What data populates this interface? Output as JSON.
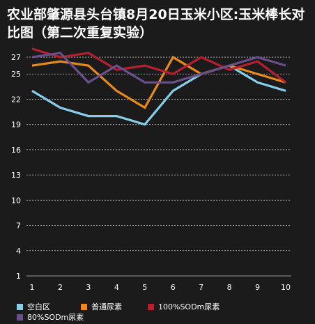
{
  "chart_data": {
    "type": "line",
    "title": "农业部肇源县头台镇8月20日玉米小区:玉米棒长对比图（第二次重复实验）",
    "x": [
      1,
      2,
      3,
      4,
      5,
      6,
      7,
      8,
      9,
      10
    ],
    "yticks": [
      1,
      4,
      7,
      10,
      13,
      16,
      19,
      22,
      25,
      27
    ],
    "ylim": [
      1,
      28
    ],
    "grid": true,
    "legend_position": "bottom",
    "series": [
      {
        "name": "空白区",
        "color": "#87ceeb",
        "values": [
          23,
          21,
          20,
          20,
          19,
          23,
          25,
          26,
          24,
          23
        ]
      },
      {
        "name": "普通尿素",
        "color": "#e8891d",
        "values": [
          26,
          26.5,
          26,
          23,
          21,
          27,
          25,
          26,
          25,
          24
        ]
      },
      {
        "name": "100%SODm尿素",
        "color": "#b5202e",
        "values": [
          28,
          27,
          27.5,
          25.5,
          26,
          25,
          27,
          25.5,
          26.5,
          24
        ]
      },
      {
        "name": "80%SODm尿素",
        "color": "#6a4f8c",
        "values": [
          27,
          27.5,
          24,
          26,
          24,
          24,
          25,
          26,
          27,
          26
        ]
      }
    ]
  }
}
